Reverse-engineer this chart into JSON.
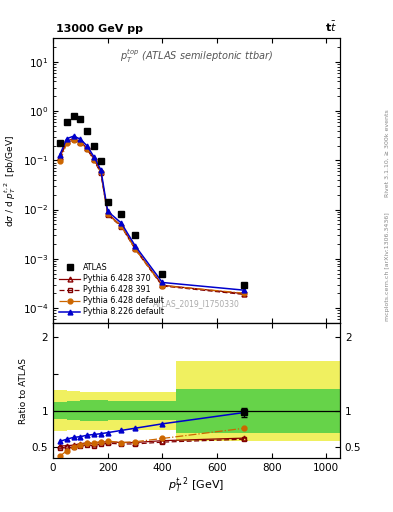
{
  "title_left": "13000 GeV pp",
  "title_right": "t$\\bar{t}$",
  "annotation": "ATLAS_2019_I1750330",
  "subplot_title": "$p_T^{top}$ (ATLAS semileptonic ttbar)",
  "xlabel": "$p_T^{t,2}$ [GeV]",
  "ylabel_main": "d$\\sigma$ / d $p_T^{t,2}$  [pb/GeV]",
  "ylabel_ratio": "Ratio to ATLAS",
  "right_label1": "Rivet 3.1.10, ≥ 300k events",
  "right_label2": "mcplots.cern.ch [arXiv:1306.3436]",
  "atlas_x": [
    25,
    50,
    75,
    100,
    125,
    150,
    175,
    200,
    250,
    300,
    400,
    700
  ],
  "atlas_y": [
    0.22,
    0.6,
    0.78,
    0.68,
    0.4,
    0.2,
    0.095,
    0.014,
    0.008,
    0.003,
    0.0005,
    0.0003
  ],
  "py6_370_x": [
    25,
    50,
    75,
    100,
    125,
    150,
    175,
    200,
    250,
    300,
    400,
    700
  ],
  "py6_370_y": [
    0.115,
    0.245,
    0.275,
    0.24,
    0.175,
    0.105,
    0.058,
    0.0082,
    0.0047,
    0.00165,
    0.00029,
    0.000195
  ],
  "py6_391_x": [
    25,
    50,
    75,
    100,
    125,
    150,
    175,
    200,
    250,
    300,
    400,
    700
  ],
  "py6_391_y": [
    0.11,
    0.235,
    0.265,
    0.23,
    0.168,
    0.1,
    0.055,
    0.0078,
    0.0045,
    0.00158,
    0.00028,
    0.000188
  ],
  "py6_def_x": [
    25,
    50,
    75,
    100,
    125,
    150,
    175,
    200,
    250,
    300,
    400,
    700
  ],
  "py6_def_y": [
    0.095,
    0.22,
    0.26,
    0.23,
    0.17,
    0.103,
    0.057,
    0.008,
    0.0046,
    0.0016,
    0.000285,
    0.0002
  ],
  "py8_def_x": [
    25,
    50,
    75,
    100,
    125,
    150,
    175,
    200,
    250,
    300,
    400,
    700
  ],
  "py8_def_y": [
    0.13,
    0.275,
    0.31,
    0.27,
    0.195,
    0.117,
    0.064,
    0.0092,
    0.0053,
    0.00185,
    0.00033,
    0.00023
  ],
  "ratio_py6_370_x": [
    25,
    50,
    75,
    100,
    125,
    150,
    175,
    200,
    250,
    300,
    400,
    700
  ],
  "ratio_py6_370_y": [
    0.52,
    0.52,
    0.53,
    0.55,
    0.56,
    0.55,
    0.57,
    0.575,
    0.565,
    0.565,
    0.59,
    0.625
  ],
  "ratio_py6_391_x": [
    25,
    50,
    75,
    100,
    125,
    150,
    175,
    200,
    250,
    300,
    400,
    700
  ],
  "ratio_py6_391_y": [
    0.49,
    0.5,
    0.5,
    0.52,
    0.535,
    0.52,
    0.545,
    0.555,
    0.545,
    0.545,
    0.57,
    0.61
  ],
  "ratio_py6_def_x": [
    25,
    50,
    75,
    100,
    125,
    150,
    175,
    200,
    250,
    300,
    400,
    700
  ],
  "ratio_py6_def_y": [
    0.38,
    0.45,
    0.5,
    0.53,
    0.56,
    0.565,
    0.575,
    0.585,
    0.565,
    0.575,
    0.62,
    0.76
  ],
  "ratio_py8_def_x": [
    25,
    50,
    75,
    100,
    125,
    150,
    175,
    200,
    250,
    300,
    400,
    700
  ],
  "ratio_py8_def_y": [
    0.58,
    0.61,
    0.635,
    0.645,
    0.665,
    0.675,
    0.685,
    0.7,
    0.73,
    0.76,
    0.82,
    0.975
  ],
  "ratio_atlas_x": [
    700
  ],
  "ratio_atlas_y": [
    0.975
  ],
  "ratio_atlas_yerr": [
    0.065
  ],
  "band1_x": [
    0,
    50,
    100,
    150,
    200,
    250,
    300,
    350,
    450
  ],
  "band1_green_lo": [
    0.88,
    0.87,
    0.86,
    0.86,
    0.87,
    0.87,
    0.87,
    0.87,
    0.87
  ],
  "band1_green_hi": [
    1.12,
    1.13,
    1.14,
    1.14,
    1.13,
    1.13,
    1.13,
    1.13,
    1.13
  ],
  "band1_yellow_lo": [
    0.72,
    0.73,
    0.74,
    0.74,
    0.74,
    0.74,
    0.74,
    0.74,
    0.74
  ],
  "band1_yellow_hi": [
    1.28,
    1.27,
    1.26,
    1.26,
    1.26,
    1.26,
    1.26,
    1.26,
    1.26
  ],
  "band2_green_lo": 0.7,
  "band2_green_hi": 1.3,
  "band2_yellow_lo": 0.58,
  "band2_yellow_hi": 1.68,
  "band2_x_start": 450,
  "band2_x_end": 1050,
  "color_atlas": "#000000",
  "color_py6_370": "#8b0000",
  "color_py6_391": "#800000",
  "color_py6_def": "#cc6600",
  "color_py8_def": "#0000cc",
  "color_green": "#44cc44",
  "color_yellow": "#eeee44",
  "ylim_main": [
    5e-05,
    30
  ],
  "xlim": [
    0,
    1050
  ],
  "ylim_ratio": [
    0.35,
    2.2
  ],
  "xticks": [
    0,
    200,
    400,
    600,
    800,
    1000
  ],
  "xtick_labels": [
    "0",
    "200",
    "400",
    "600",
    "800",
    "1000"
  ]
}
